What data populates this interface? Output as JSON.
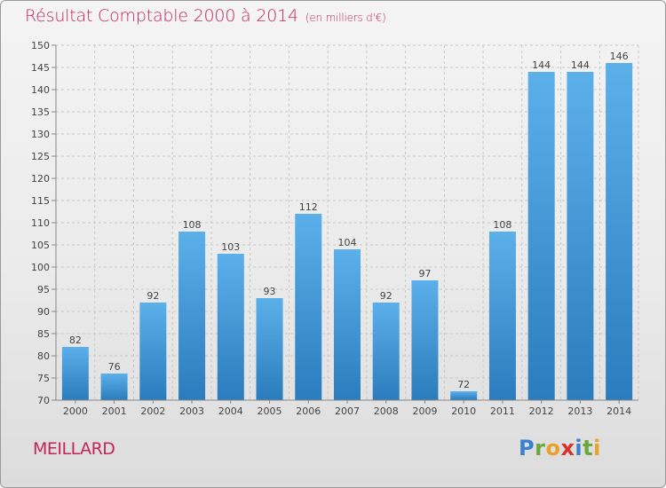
{
  "header": {
    "title": "Résultat Comptable 2000 à 2014",
    "subtitle": "(en milliers d'€)"
  },
  "footer": {
    "commune": "MEILLARD",
    "brand": "Proxiti"
  },
  "colors": {
    "title": "#c4245a",
    "bar_top": "#5cb0ea",
    "bar_bottom": "#2a7cbc",
    "grid": "#c8c8c8"
  },
  "chart_data": {
    "type": "bar",
    "title": "Résultat Comptable 2000 à 2014",
    "subtitle": "(en milliers d'€)",
    "xlabel": "",
    "ylabel": "",
    "categories": [
      "2000",
      "2001",
      "2002",
      "2003",
      "2004",
      "2005",
      "2006",
      "2007",
      "2008",
      "2009",
      "2010",
      "2011",
      "2012",
      "2013",
      "2014"
    ],
    "values": [
      82,
      76,
      92,
      108,
      103,
      93,
      112,
      104,
      92,
      97,
      72,
      108,
      144,
      144,
      146
    ],
    "ylim": [
      70,
      150
    ],
    "yticks": [
      70,
      75,
      80,
      85,
      90,
      95,
      100,
      105,
      110,
      115,
      120,
      125,
      130,
      135,
      140,
      145,
      150
    ],
    "grid": true,
    "data_labels": true
  }
}
